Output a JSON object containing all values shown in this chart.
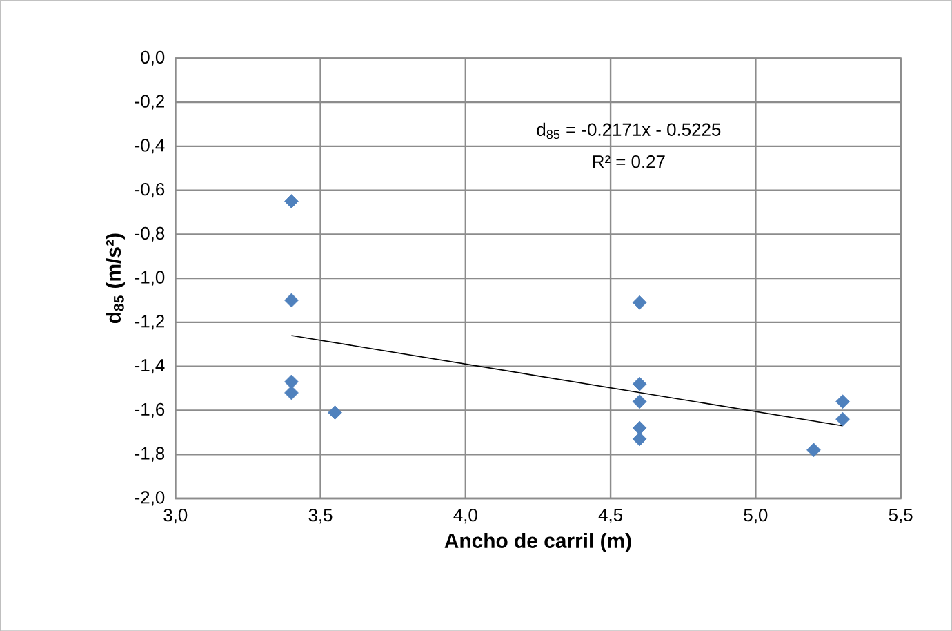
{
  "chart_data": {
    "type": "scatter",
    "xlabel": "Ancho de carril (m)",
    "ylabel": "d$_{85}$ (m/s²)",
    "annotations": [
      "d$_{85}$ = -0.2171x - 0.5225",
      "R² = 0.27"
    ],
    "series": [
      {
        "color": "#4f81bd",
        "marker": "diamond",
        "x": [
          3.4,
          3.4,
          3.4,
          3.4,
          3.55,
          4.6,
          4.6,
          4.6,
          4.6,
          4.6,
          5.2,
          5.3,
          5.3
        ],
        "values": [
          -0.65,
          -1.1,
          -1.47,
          -1.52,
          -1.61,
          -1.11,
          -1.48,
          -1.56,
          -1.68,
          -1.73,
          -1.78,
          -1.56,
          -1.64
        ]
      },
      {
        "type": "line",
        "color": "#000000",
        "marker": "none",
        "x": [
          3.4,
          5.3
        ],
        "values": [
          -1.26,
          -1.67
        ]
      }
    ],
    "xlim": [
      3.0,
      5.5
    ],
    "xticks": [
      {
        "value": 3.0,
        "label": "3,0"
      },
      {
        "value": 3.5,
        "label": "3,5"
      },
      {
        "value": 4.0,
        "label": "4,0"
      },
      {
        "value": 4.5,
        "label": "4,5"
      },
      {
        "value": 5.0,
        "label": "5,0"
      },
      {
        "value": 5.5,
        "label": "5,5"
      }
    ],
    "ylim": [
      -2.0,
      0.0
    ],
    "yticks": [
      {
        "value": -2.0,
        "label": "-2,0"
      },
      {
        "value": -1.8,
        "label": "-1,8"
      },
      {
        "value": -1.6,
        "label": "-1,6"
      },
      {
        "value": -1.4,
        "label": "-1,4"
      },
      {
        "value": -1.2,
        "label": "-1,2"
      },
      {
        "value": -1.0,
        "label": "-1,0"
      },
      {
        "value": -0.8,
        "label": "-0,8"
      },
      {
        "value": -0.6,
        "label": "-0,6"
      },
      {
        "value": -0.4,
        "label": "-0,4"
      },
      {
        "value": -0.2,
        "label": "-0,2"
      },
      {
        "value": 0.0,
        "label": "0,0"
      }
    ],
    "grid": true
  }
}
